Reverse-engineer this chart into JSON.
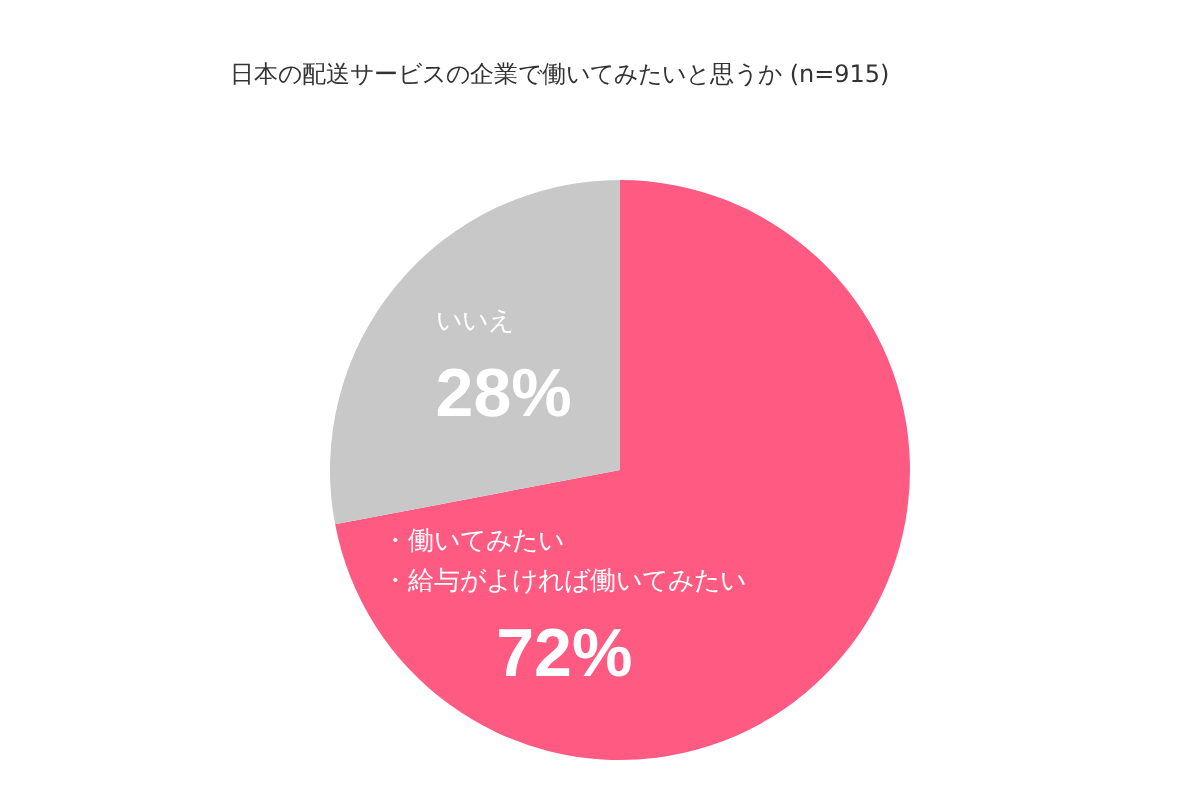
{
  "chart_data": {
    "type": "pie",
    "title": "日本の配送サービスの企業で働いてみたいと思うか (n=915)",
    "categories": [
      "・働いてみたい・給与がよければ働いてみたい",
      "いいえ"
    ],
    "values": [
      72,
      28
    ],
    "colors": [
      "#ff5a82",
      "#c8c8c8"
    ],
    "value_labels": [
      "72%",
      "28%"
    ],
    "legend": false
  }
}
